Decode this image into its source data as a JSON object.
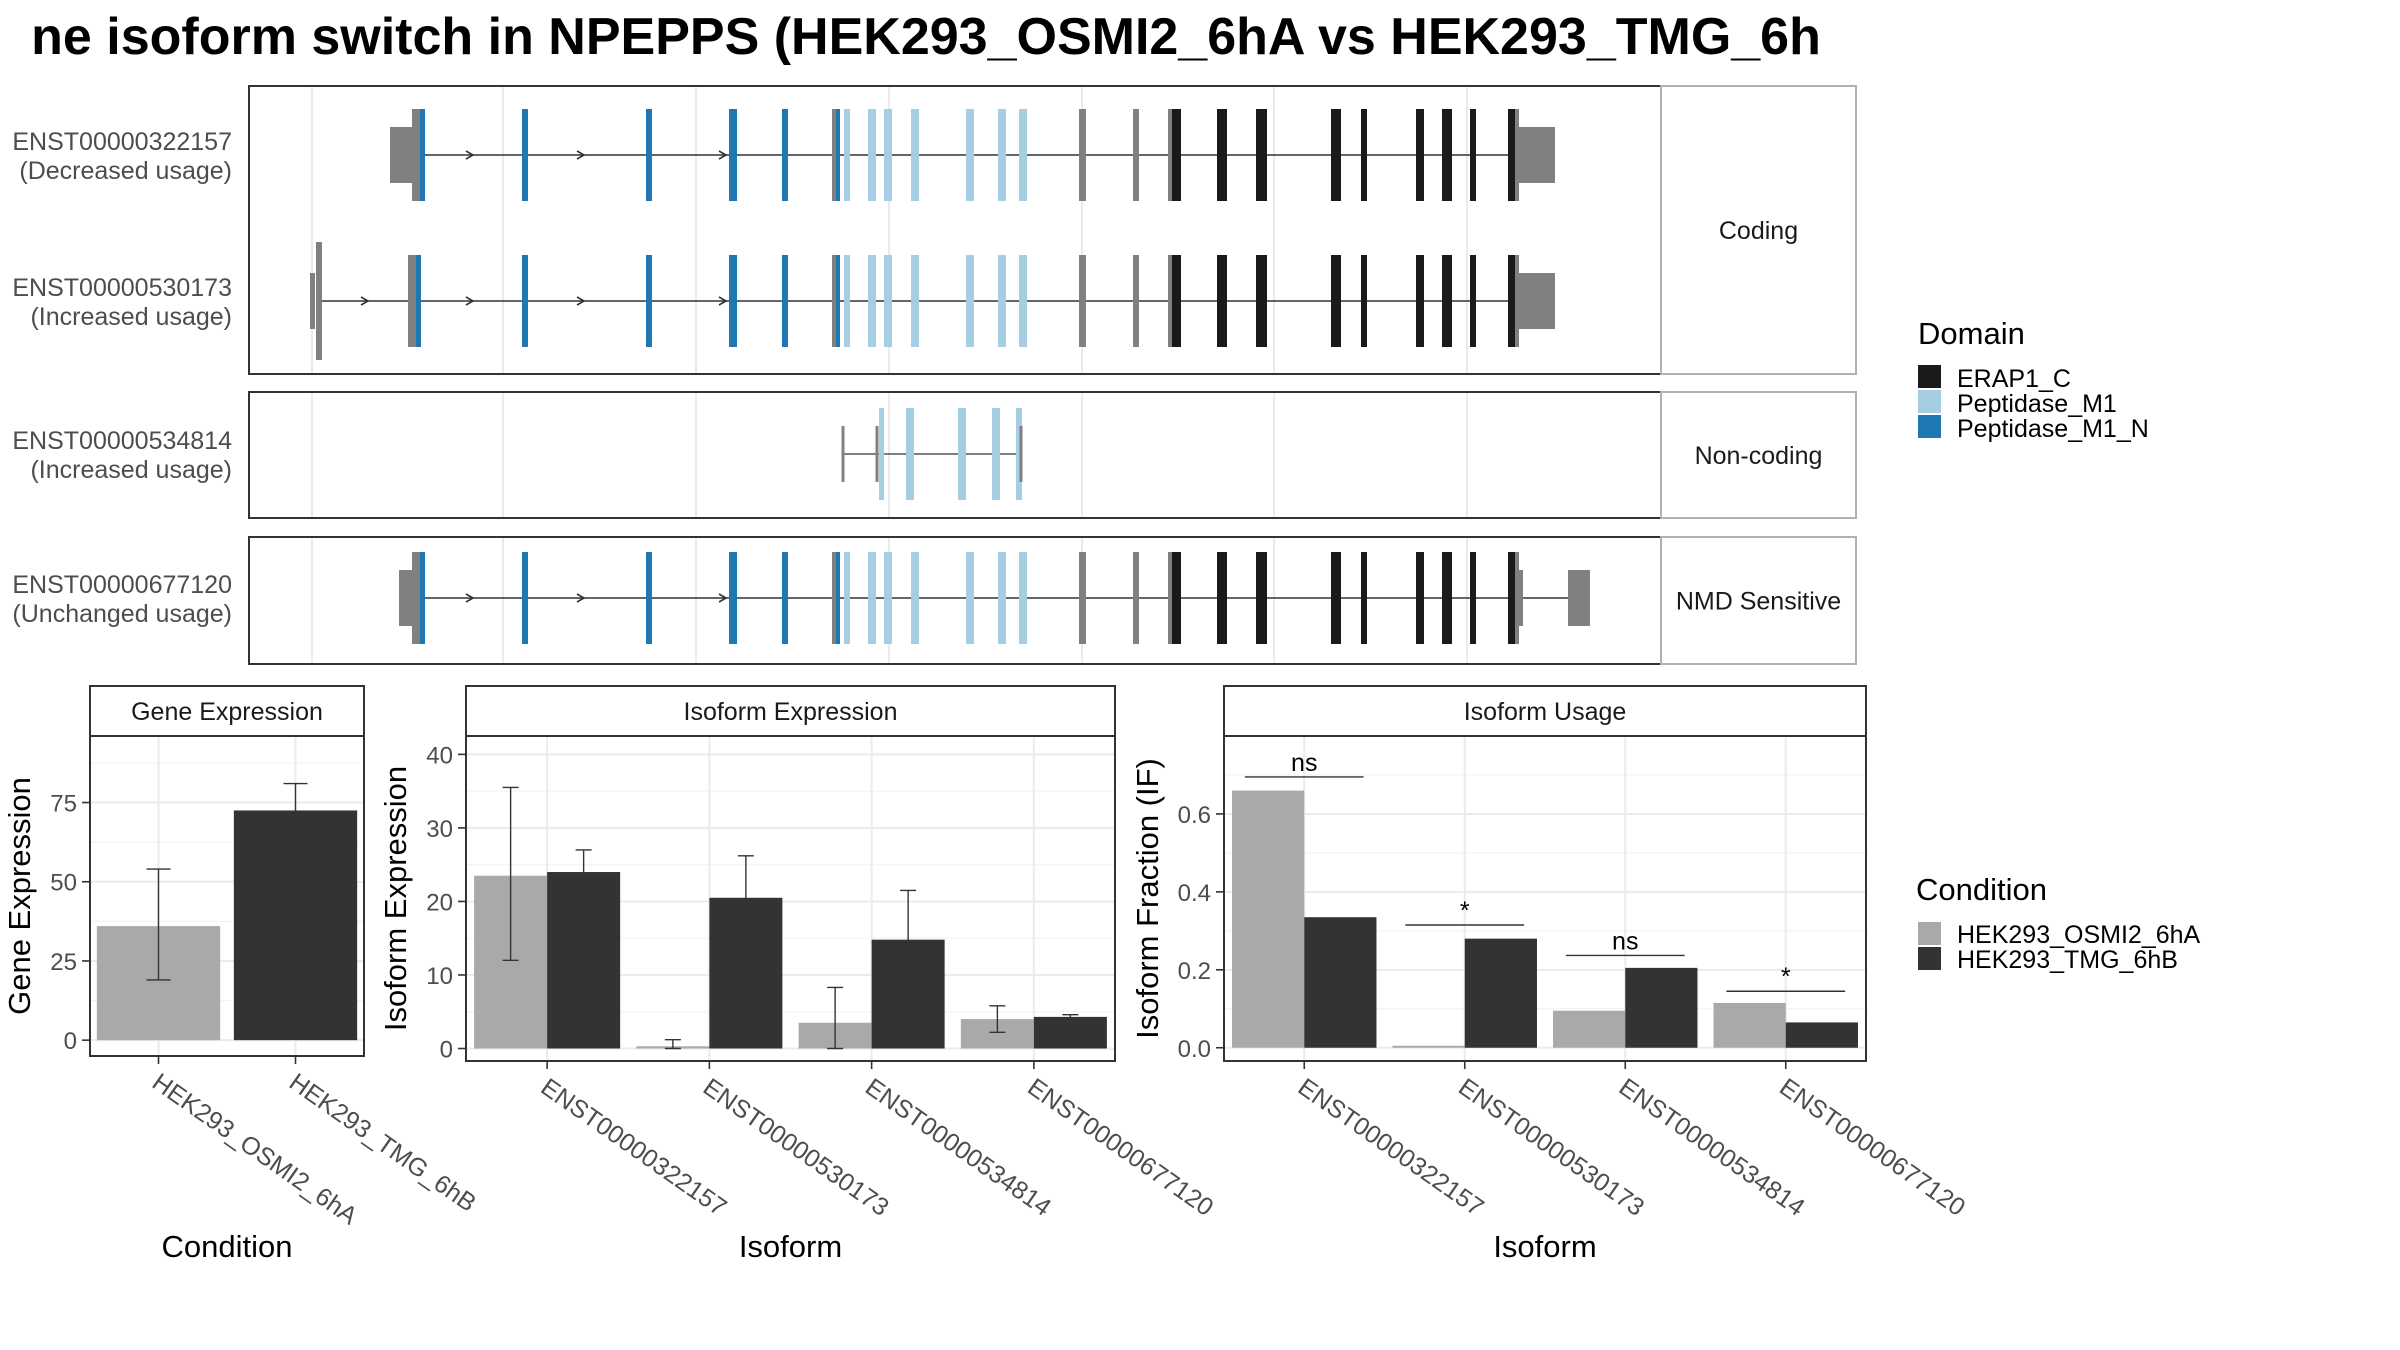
{
  "title": "ne isoform switch in NPEPPS (HEK293_OSMI2_6hA vs HEK293_TMG_6h",
  "colors": {
    "domains": {
      "ERAP1_C": "#1a1a1a",
      "Peptidase_M1": "#a6cee3",
      "Peptidase_M1_N": "#1f78b4"
    },
    "conditions": {
      "HEK293_OSMI2_6hA": "#a9a9a9",
      "HEK293_TMG_6hB": "#333333"
    },
    "exon_no_domain": "#808080"
  },
  "structure": {
    "facets": [
      "Coding",
      "Non-coding",
      "NMD Sensitive"
    ],
    "transcripts": [
      {
        "id": "ENST00000322157",
        "usage": "(Decreased usage)",
        "facet": 0
      },
      {
        "id": "ENST00000530173",
        "usage": "(Increased usage)",
        "facet": 0
      },
      {
        "id": "ENST00000534814",
        "usage": "(Increased usage)",
        "facet": 1
      },
      {
        "id": "ENST00000677120",
        "usage": "(Unchanged usage)",
        "facet": 2
      }
    ]
  },
  "legend_domain": {
    "title": "Domain",
    "items": [
      "ERAP1_C",
      "Peptidase_M1",
      "Peptidase_M1_N"
    ]
  },
  "legend_condition": {
    "title": "Condition",
    "items": [
      "HEK293_OSMI2_6hA",
      "HEK293_TMG_6hB"
    ]
  },
  "chart_data": [
    {
      "type": "bar",
      "title": "Gene Expression",
      "xlabel": "Condition",
      "ylabel": "Gene Expression",
      "categories": [
        "HEK293_OSMI2_6hA",
        "HEK293_TMG_6hB"
      ],
      "values": [
        36,
        72.5
      ],
      "error_low": [
        19,
        64
      ],
      "error_high": [
        54,
        81
      ],
      "ylim": [
        -5,
        96
      ],
      "yticks": [
        0,
        25,
        50,
        75
      ]
    },
    {
      "type": "bar",
      "title": "Isoform Expression",
      "xlabel": "Isoform",
      "ylabel": "Isoform Expression",
      "categories": [
        "ENST00000322157",
        "ENST00000530173",
        "ENST00000534814",
        "ENST00000677120"
      ],
      "series": [
        {
          "name": "HEK293_OSMI2_6hA",
          "values": [
            23.5,
            0.3,
            3.5,
            4
          ],
          "error_low": [
            12,
            0,
            0,
            2.2
          ],
          "error_high": [
            35.5,
            1.2,
            8.3,
            5.8
          ]
        },
        {
          "name": "HEK293_TMG_6hB",
          "values": [
            24,
            20.5,
            14.8,
            4.3
          ],
          "error_low": [
            21.5,
            15,
            8.5,
            4
          ],
          "error_high": [
            27,
            26.2,
            21.5,
            4.6
          ]
        }
      ],
      "ylim": [
        -1.7,
        42.5
      ],
      "yticks": [
        0,
        10,
        20,
        30,
        40
      ]
    },
    {
      "type": "bar",
      "title": "Isoform Usage",
      "xlabel": "Isoform",
      "ylabel": "Isoform Fraction (IF)",
      "categories": [
        "ENST00000322157",
        "ENST00000530173",
        "ENST00000534814",
        "ENST00000677120"
      ],
      "series": [
        {
          "name": "HEK293_OSMI2_6hA",
          "values": [
            0.66,
            0.005,
            0.095,
            0.115
          ]
        },
        {
          "name": "HEK293_TMG_6hB",
          "values": [
            0.335,
            0.28,
            0.205,
            0.065
          ]
        }
      ],
      "significance": [
        {
          "label": "ns",
          "y": 0.695
        },
        {
          "label": "*",
          "y": 0.315
        },
        {
          "label": "ns",
          "y": 0.237
        },
        {
          "label": "*",
          "y": 0.145
        }
      ],
      "ylim": [
        -0.034,
        0.8
      ],
      "yticks": [
        0.0,
        0.2,
        0.4,
        0.6
      ],
      "ytick_labels": [
        "0.0",
        "0.2",
        "0.4",
        "0.6"
      ]
    }
  ]
}
